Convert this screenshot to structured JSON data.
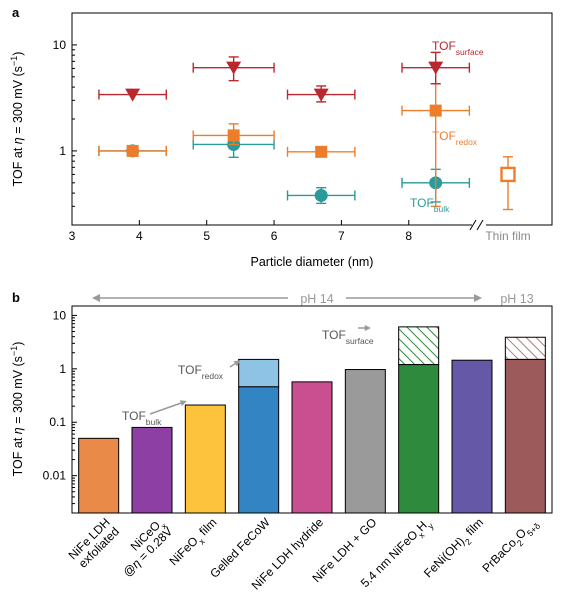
{
  "colors": {
    "surface": "#b8282e",
    "redox": "#ee7d2b",
    "bulk": "#2a9a9a",
    "grey": "#9a9a9a",
    "greyText": "#8a8a8a"
  },
  "chart_data": [
    {
      "panel_label": "a",
      "type": "scatter",
      "xlabel": "Particle diameter (nm)",
      "ylabel": {
        "main": "TOF at ",
        "eta": "η",
        "mid": " = 300 mV (s",
        "sup": "−1",
        "end": ")"
      },
      "xlim": [
        3,
        8.85
      ],
      "yscale": "log",
      "ylim": [
        0.2,
        20
      ],
      "xticks": [
        3,
        4,
        5,
        6,
        7,
        8
      ],
      "yticks": [
        {
          "value": 1,
          "label": "1"
        },
        {
          "value": 10,
          "label": "10"
        }
      ],
      "extra_category": "Thin film",
      "series": [
        {
          "key": "surface",
          "marker": "triangle-down",
          "label": {
            "main": "TOF",
            "sub": "surface"
          },
          "points": [
            {
              "x": 3.9,
              "y": 3.4,
              "xerr": 0.5,
              "yerr": [
                3.4,
                3.4
              ]
            },
            {
              "x": 5.4,
              "y": 6.1,
              "xerr": 0.6,
              "yerr": [
                4.6,
                7.7
              ]
            },
            {
              "x": 6.7,
              "y": 3.4,
              "xerr": 0.5,
              "yerr": [
                2.9,
                4.1
              ]
            },
            {
              "x": 8.4,
              "y": 6.1,
              "xerr": 0.5,
              "yerr": [
                4.3,
                8.5
              ]
            }
          ]
        },
        {
          "key": "redox",
          "marker": "square",
          "label": {
            "main": "TOF",
            "sub": "redox"
          },
          "points": [
            {
              "x": 3.9,
              "y": 1.0,
              "xerr": 0.5,
              "yerr": [
                0.94,
                1.06
              ]
            },
            {
              "x": 5.4,
              "y": 1.4,
              "xerr": 0.6,
              "yerr": [
                1.15,
                1.8
              ]
            },
            {
              "x": 6.7,
              "y": 0.98,
              "xerr": 0.5,
              "yerr": [
                0.98,
                0.98
              ]
            },
            {
              "x": 8.4,
              "y": 2.4,
              "xerr": 0.5,
              "yerr": [
                0.3,
                4.3
              ]
            }
          ],
          "extra_point": {
            "y": 0.6,
            "yerr": [
              0.28,
              0.88
            ],
            "hollow": true
          }
        },
        {
          "key": "bulk",
          "marker": "circle",
          "label": {
            "main": "TOF",
            "sub": "bulk"
          },
          "points": [
            {
              "x": 3.9,
              "y": 1.0,
              "xerr": 0.5,
              "yerr": [
                0.94,
                1.06
              ]
            },
            {
              "x": 5.4,
              "y": 1.15,
              "xerr": 0.6,
              "yerr": [
                0.87,
                1.4
              ]
            },
            {
              "x": 6.7,
              "y": 0.38,
              "xerr": 0.5,
              "yerr": [
                0.32,
                0.45
              ]
            },
            {
              "x": 8.4,
              "y": 0.5,
              "xerr": 0.5,
              "yerr": [
                0.33,
                0.67
              ]
            }
          ]
        }
      ]
    },
    {
      "panel_label": "b",
      "type": "bar",
      "ylabel": {
        "main": "TOF at ",
        "eta": "η",
        "mid": " = 300 mV (s",
        "sup": "−1",
        "end": ")"
      },
      "yscale": "log",
      "ylim": [
        0.002,
        15
      ],
      "yticks": [
        {
          "value": 0.01,
          "label": "0.01"
        },
        {
          "value": 0.1,
          "label": "0.1"
        },
        {
          "value": 1,
          "label": "1"
        },
        {
          "value": 10,
          "label": "10"
        }
      ],
      "ph_labels": [
        {
          "text": "pH 14"
        },
        {
          "text": "pH 13"
        }
      ],
      "categories": [
        {
          "label": [
            "NiFe LDH",
            "exfoliated"
          ],
          "value": 0.05,
          "color": "#e98a48"
        },
        {
          "label": [
            {
              "t": "NiCeO"
            },
            {
              "t": "x",
              "sub": true
            }
          ],
          "label2": [
            {
              "t": "@"
            },
            {
              "t": "η",
              "italic": true
            },
            {
              "t": " = 0.28V"
            }
          ],
          "value": 0.08,
          "color": "#8e3fa3"
        },
        {
          "label": [
            {
              "t": "NiFeO"
            },
            {
              "t": "x",
              "sub": true
            },
            {
              "t": " film"
            }
          ],
          "value": 0.21,
          "color": "#fec33d"
        },
        {
          "label": "Gelled FeCoW",
          "value": 0.46,
          "top": 1.5,
          "top_color": "#8fc3e5",
          "color": "#3384c2"
        },
        {
          "label": "NiFe LDH hydride",
          "value": 0.57,
          "color": "#c94f90"
        },
        {
          "label": "NiFe LDH + GO",
          "value": 0.97,
          "color": "#9a9a9a"
        },
        {
          "label": [
            {
              "t": "5.4 nm NiFeO"
            },
            {
              "t": "x",
              "sub": true
            },
            {
              "t": "H"
            },
            {
              "t": "y",
              "sub": true
            }
          ],
          "value": 1.2,
          "top": 6.1,
          "top_hatch": true,
          "color": "#2e8a3c"
        },
        {
          "label": [
            {
              "t": "FeNi(OH)"
            },
            {
              "t": "2",
              "sub": true
            },
            {
              "t": " film"
            }
          ],
          "value": 1.45,
          "color": "#6558a7"
        },
        {
          "label": [
            {
              "t": "PrBaCo"
            },
            {
              "t": "2",
              "sub": true
            },
            {
              "t": "O"
            },
            {
              "t": "5+δ",
              "sub": true
            }
          ],
          "value": 1.5,
          "top": 3.9,
          "top_hatch": true,
          "color": "#9c5a5b"
        }
      ],
      "annotations": [
        {
          "main": "TOF",
          "sub": "bulk"
        },
        {
          "main": "TOF",
          "sub": "redox"
        },
        {
          "main": "TOF",
          "sub": "surface"
        }
      ]
    }
  ]
}
